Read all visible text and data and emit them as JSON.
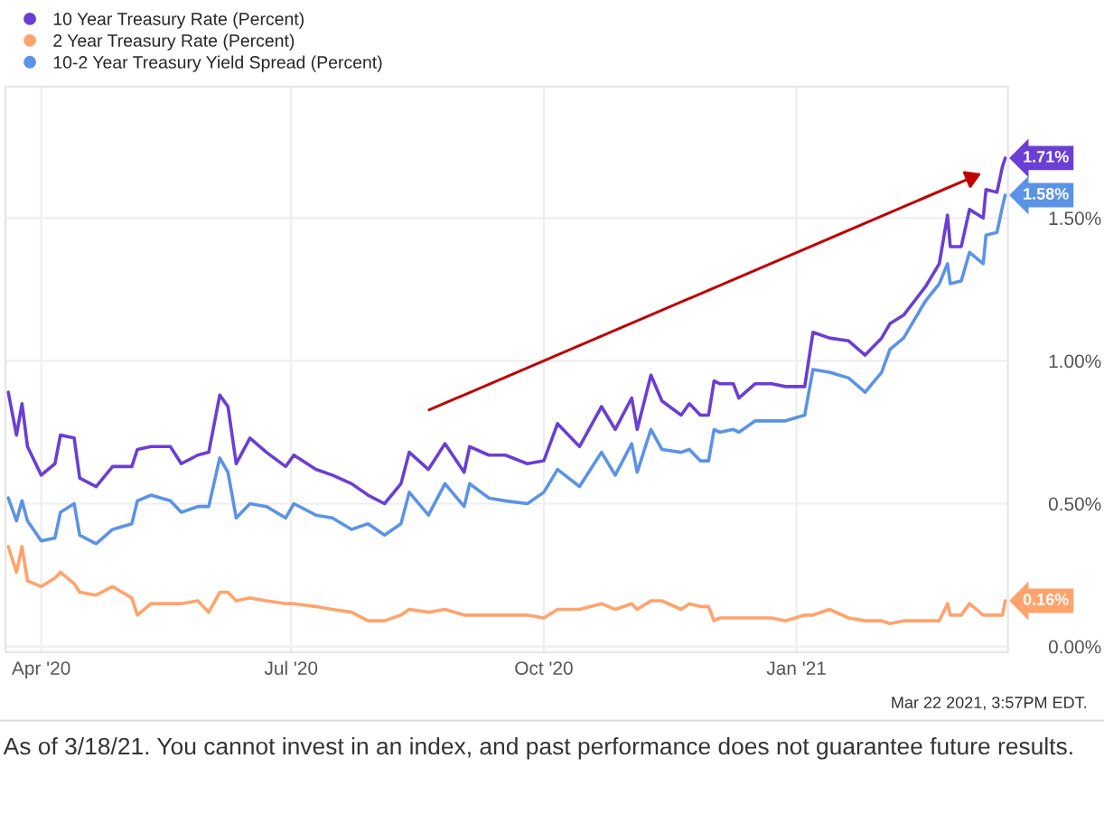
{
  "chart_data": {
    "type": "line",
    "x": [
      "2020-03-20",
      "2020-03-23",
      "2020-03-25",
      "2020-03-27",
      "2020-04-01",
      "2020-04-06",
      "2020-04-08",
      "2020-04-13",
      "2020-04-15",
      "2020-04-21",
      "2020-04-27",
      "2020-05-04",
      "2020-05-06",
      "2020-05-11",
      "2020-05-18",
      "2020-05-22",
      "2020-05-28",
      "2020-06-01",
      "2020-06-05",
      "2020-06-08",
      "2020-06-11",
      "2020-06-16",
      "2020-06-22",
      "2020-06-29",
      "2020-07-02",
      "2020-07-10",
      "2020-07-16",
      "2020-07-23",
      "2020-07-29",
      "2020-08-04",
      "2020-08-10",
      "2020-08-13",
      "2020-08-20",
      "2020-08-26",
      "2020-09-02",
      "2020-09-04",
      "2020-09-11",
      "2020-09-17",
      "2020-09-25",
      "2020-10-01",
      "2020-10-06",
      "2020-10-14",
      "2020-10-22",
      "2020-10-27",
      "2020-11-02",
      "2020-11-04",
      "2020-11-09",
      "2020-11-13",
      "2020-11-20",
      "2020-11-23",
      "2020-11-27",
      "2020-11-30",
      "2020-12-02",
      "2020-12-04",
      "2020-12-09",
      "2020-12-11",
      "2020-12-17",
      "2020-12-23",
      "2020-12-28",
      "2021-01-04",
      "2021-01-07",
      "2021-01-13",
      "2021-01-20",
      "2021-01-26",
      "2021-02-01",
      "2021-02-04",
      "2021-02-09",
      "2021-02-17",
      "2021-02-22",
      "2021-02-25",
      "2021-02-26",
      "2021-03-02",
      "2021-03-05",
      "2021-03-10",
      "2021-03-11",
      "2021-03-15",
      "2021-03-17",
      "2021-03-18"
    ],
    "series": [
      {
        "name": "10 Year Treasury Rate (Percent)",
        "color": "#6a3fd3",
        "values": [
          0.89,
          0.74,
          0.85,
          0.7,
          0.6,
          0.64,
          0.74,
          0.73,
          0.59,
          0.56,
          0.63,
          0.63,
          0.69,
          0.7,
          0.7,
          0.64,
          0.67,
          0.68,
          0.88,
          0.84,
          0.64,
          0.73,
          0.68,
          0.63,
          0.67,
          0.62,
          0.6,
          0.57,
          0.53,
          0.5,
          0.57,
          0.68,
          0.62,
          0.71,
          0.61,
          0.7,
          0.67,
          0.67,
          0.64,
          0.65,
          0.78,
          0.7,
          0.84,
          0.76,
          0.87,
          0.76,
          0.95,
          0.86,
          0.81,
          0.85,
          0.81,
          0.81,
          0.93,
          0.92,
          0.92,
          0.87,
          0.92,
          0.92,
          0.91,
          0.91,
          1.1,
          1.08,
          1.07,
          1.02,
          1.08,
          1.13,
          1.16,
          1.26,
          1.34,
          1.51,
          1.4,
          1.4,
          1.53,
          1.5,
          1.6,
          1.59,
          1.68,
          1.71
        ]
      },
      {
        "name": "2 Year Treasury Rate (Percent)",
        "color": "#ffa36c",
        "values": [
          0.35,
          0.26,
          0.35,
          0.23,
          0.21,
          0.24,
          0.26,
          0.22,
          0.19,
          0.18,
          0.21,
          0.17,
          0.11,
          0.15,
          0.15,
          0.15,
          0.16,
          0.12,
          0.19,
          0.19,
          0.16,
          0.17,
          0.16,
          0.15,
          0.15,
          0.14,
          0.13,
          0.12,
          0.09,
          0.09,
          0.11,
          0.13,
          0.12,
          0.13,
          0.11,
          0.11,
          0.11,
          0.11,
          0.11,
          0.1,
          0.13,
          0.13,
          0.15,
          0.13,
          0.15,
          0.13,
          0.16,
          0.16,
          0.13,
          0.15,
          0.14,
          0.14,
          0.09,
          0.1,
          0.1,
          0.1,
          0.1,
          0.1,
          0.09,
          0.11,
          0.11,
          0.13,
          0.1,
          0.09,
          0.09,
          0.08,
          0.09,
          0.09,
          0.09,
          0.15,
          0.11,
          0.11,
          0.15,
          0.11,
          0.11,
          0.11,
          0.11,
          0.16
        ]
      },
      {
        "name": "10-2 Year Treasury Yield Spread (Percent)",
        "color": "#5b93e6",
        "values": [
          0.52,
          0.44,
          0.51,
          0.44,
          0.37,
          0.38,
          0.47,
          0.5,
          0.39,
          0.36,
          0.41,
          0.43,
          0.51,
          0.53,
          0.51,
          0.47,
          0.49,
          0.49,
          0.66,
          0.61,
          0.45,
          0.5,
          0.49,
          0.45,
          0.5,
          0.46,
          0.45,
          0.41,
          0.43,
          0.39,
          0.43,
          0.54,
          0.46,
          0.57,
          0.49,
          0.57,
          0.52,
          0.51,
          0.5,
          0.54,
          0.62,
          0.56,
          0.68,
          0.6,
          0.71,
          0.61,
          0.76,
          0.69,
          0.68,
          0.69,
          0.65,
          0.65,
          0.76,
          0.75,
          0.76,
          0.75,
          0.79,
          0.79,
          0.79,
          0.81,
          0.97,
          0.96,
          0.94,
          0.89,
          0.96,
          1.04,
          1.08,
          1.21,
          1.27,
          1.34,
          1.27,
          1.28,
          1.38,
          1.34,
          1.44,
          1.45,
          1.54,
          1.58
        ]
      }
    ],
    "xlim": [
      "2020-03-19",
      "2021-03-19"
    ],
    "xticks": [
      {
        "value": "2020-04-01",
        "label": "Apr '20"
      },
      {
        "value": "2020-07-01",
        "label": "Jul '20"
      },
      {
        "value": "2020-10-01",
        "label": "Oct '20"
      },
      {
        "value": "2021-01-01",
        "label": "Jan '21"
      }
    ],
    "ylim": [
      -0.02,
      1.96
    ],
    "yticks": [
      {
        "value": 0,
        "label": "0.00%"
      },
      {
        "value": 0.5,
        "label": "0.50%"
      },
      {
        "value": 1.0,
        "label": "1.00%"
      },
      {
        "value": 1.5,
        "label": "1.50%"
      }
    ],
    "grid": true,
    "legend": "top left",
    "marker": "none",
    "line_style": "solid",
    "annotations": [
      {
        "text": "1.71%",
        "x": "2021-03-18",
        "y": 1.71
      },
      {
        "text": "1.58%",
        "x": "2021-03-18",
        "y": 1.58
      },
      {
        "text": "0.16%",
        "x": "2021-03-18",
        "y": 0.16
      },
      "Mar 22 2021, 3:57PM EDT.",
      "As of 3/18/21. You cannot invest in an index, and past performance does not guarantee future results."
    ]
  }
}
